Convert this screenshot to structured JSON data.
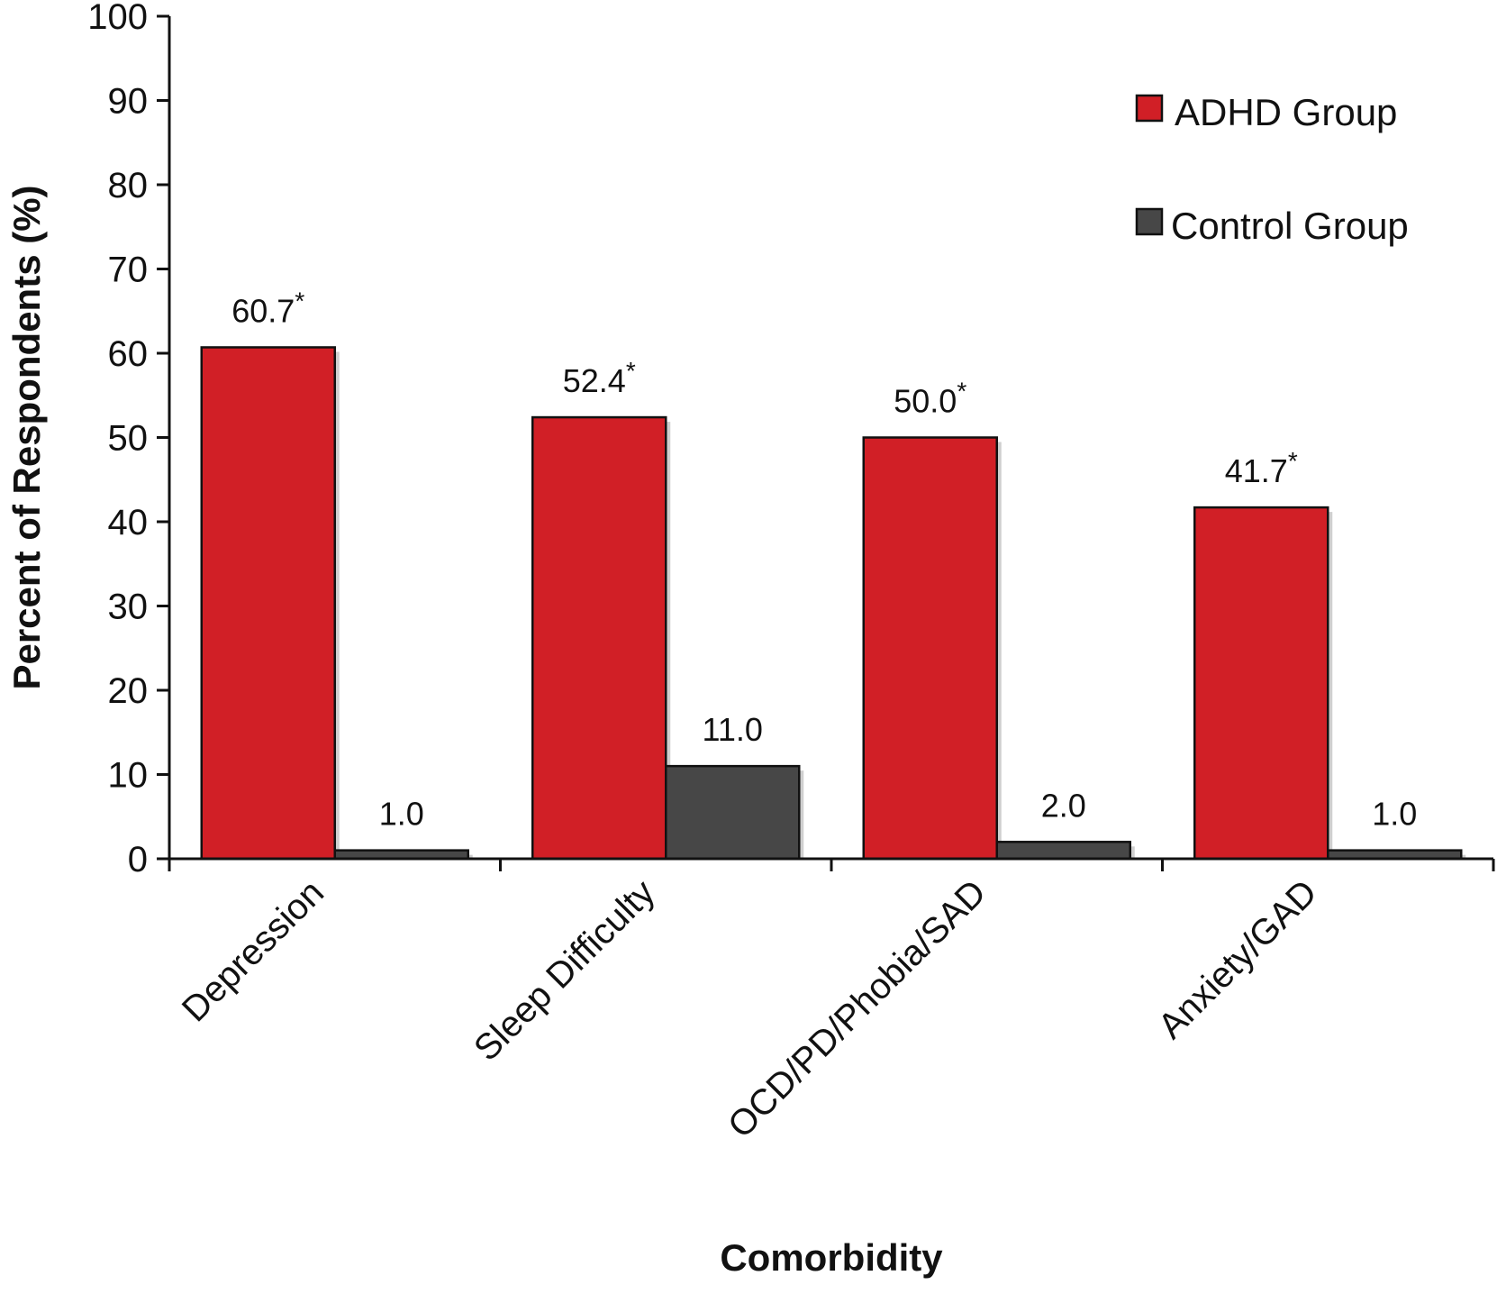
{
  "chart_data": {
    "type": "bar",
    "title": "",
    "xlabel": "Comorbidity",
    "ylabel": "Percent of Respondents (%)",
    "ylim": [
      0,
      100
    ],
    "yticks": [
      0,
      10,
      20,
      30,
      40,
      50,
      60,
      70,
      80,
      90,
      100
    ],
    "categories": [
      "Depression",
      "Sleep Difficulty",
      "OCD/PD/Phobia/SAD",
      "Anxiety/GAD"
    ],
    "series": [
      {
        "name": "ADHD Group",
        "color": "#d11f26",
        "values": [
          60.7,
          52.4,
          50.0,
          41.7
        ],
        "labels": [
          "60.7",
          "52.4",
          "50.0",
          "41.7"
        ],
        "marker": "*"
      },
      {
        "name": "Control Group",
        "color": "#474747",
        "values": [
          1.0,
          11.0,
          2.0,
          1.0
        ],
        "labels": [
          "1.0",
          "11.0",
          "2.0",
          "1.0"
        ],
        "marker": ""
      }
    ],
    "legend": "top-right",
    "grid": false
  }
}
